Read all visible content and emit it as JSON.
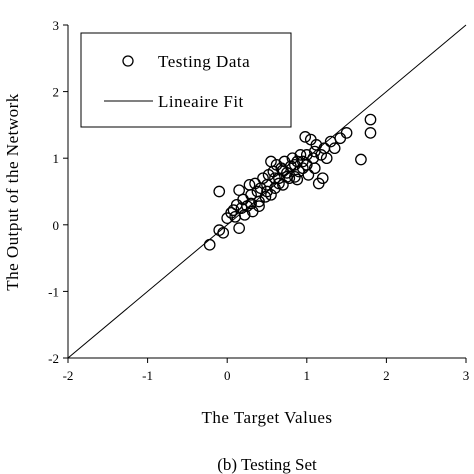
{
  "chart_data": {
    "type": "scatter",
    "xlabel": "The Target Values",
    "ylabel": "The Output of the Network",
    "caption": "(b) Testing Set",
    "xlim": [
      -2,
      3
    ],
    "ylim": [
      -2,
      3
    ],
    "xticks": [
      "-2",
      "-1",
      "0",
      "1",
      "2",
      "3"
    ],
    "yticks": [
      "-2",
      "-1",
      "0",
      "1",
      "2",
      "3"
    ],
    "grid": false,
    "legend_position": "top-left",
    "legend": [
      {
        "label": "Testing Data",
        "marker": "circle"
      },
      {
        "label": "Lineaire Fit",
        "marker": "line"
      }
    ],
    "series": [
      {
        "name": "Testing Data",
        "kind": "scatter",
        "points": [
          [
            -0.22,
            -0.3
          ],
          [
            -0.1,
            -0.08
          ],
          [
            -0.05,
            -0.12
          ],
          [
            -0.1,
            0.5
          ],
          [
            0.0,
            0.1
          ],
          [
            0.05,
            0.18
          ],
          [
            0.08,
            0.22
          ],
          [
            0.1,
            0.12
          ],
          [
            0.15,
            -0.05
          ],
          [
            0.12,
            0.3
          ],
          [
            0.18,
            0.25
          ],
          [
            0.2,
            0.38
          ],
          [
            0.15,
            0.52
          ],
          [
            0.25,
            0.28
          ],
          [
            0.28,
            0.6
          ],
          [
            0.3,
            0.45
          ],
          [
            0.32,
            0.2
          ],
          [
            0.35,
            0.62
          ],
          [
            0.38,
            0.5
          ],
          [
            0.4,
            0.35
          ],
          [
            0.42,
            0.55
          ],
          [
            0.45,
            0.7
          ],
          [
            0.48,
            0.42
          ],
          [
            0.5,
            0.6
          ],
          [
            0.52,
            0.75
          ],
          [
            0.55,
            0.95
          ],
          [
            0.58,
            0.8
          ],
          [
            0.6,
            0.55
          ],
          [
            0.62,
            0.9
          ],
          [
            0.65,
            0.7
          ],
          [
            0.68,
            0.85
          ],
          [
            0.7,
            0.6
          ],
          [
            0.72,
            0.95
          ],
          [
            0.75,
            0.78
          ],
          [
            0.78,
            0.7
          ],
          [
            0.8,
            0.88
          ],
          [
            0.82,
            1.0
          ],
          [
            0.85,
            0.72
          ],
          [
            0.88,
            0.95
          ],
          [
            0.9,
            0.8
          ],
          [
            0.92,
            1.05
          ],
          [
            0.95,
            0.85
          ],
          [
            0.98,
            1.32
          ],
          [
            1.0,
            0.9
          ],
          [
            1.02,
            0.75
          ],
          [
            1.05,
            1.28
          ],
          [
            1.08,
            1.0
          ],
          [
            1.1,
            0.85
          ],
          [
            1.12,
            1.2
          ],
          [
            1.15,
            0.62
          ],
          [
            1.18,
            1.05
          ],
          [
            1.2,
            0.7
          ],
          [
            1.22,
            1.15
          ],
          [
            1.25,
            1.0
          ],
          [
            1.3,
            1.25
          ],
          [
            1.35,
            1.15
          ],
          [
            1.42,
            1.3
          ],
          [
            1.5,
            1.38
          ],
          [
            1.68,
            0.98
          ],
          [
            1.8,
            1.58
          ],
          [
            1.8,
            1.38
          ],
          [
            0.55,
            0.45
          ],
          [
            0.65,
            0.62
          ],
          [
            0.75,
            0.72
          ],
          [
            0.85,
            0.9
          ],
          [
            0.95,
            0.95
          ],
          [
            0.88,
            0.68
          ],
          [
            0.7,
            0.82
          ],
          [
            0.6,
            0.7
          ],
          [
            0.5,
            0.5
          ],
          [
            0.4,
            0.28
          ],
          [
            0.3,
            0.32
          ],
          [
            0.22,
            0.15
          ],
          [
            1.0,
            1.05
          ],
          [
            1.1,
            1.1
          ]
        ]
      },
      {
        "name": "Lineaire Fit",
        "kind": "line",
        "x": [
          -2,
          3
        ],
        "y": [
          -2,
          3
        ]
      }
    ]
  }
}
